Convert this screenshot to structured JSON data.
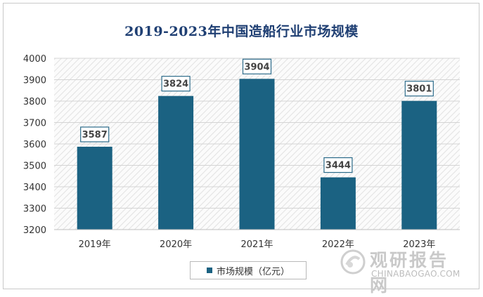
{
  "chart_data": {
    "type": "bar",
    "title": "2019-2023年中国造船行业市场规模",
    "categories": [
      "2019年",
      "2020年",
      "2021年",
      "2022年",
      "2023年"
    ],
    "series": [
      {
        "name": "市场规模（亿元）",
        "values": [
          3587,
          3824,
          3904,
          3444,
          3801
        ]
      }
    ],
    "data_labels": [
      "3587",
      "3824",
      "3904",
      "3444",
      "3801"
    ],
    "ylim": [
      3200,
      4000
    ],
    "yticks": [
      "3200",
      "3300",
      "3400",
      "3500",
      "3600",
      "3700",
      "3800",
      "3900",
      "4000"
    ],
    "xlabel": "",
    "ylabel": "",
    "legend": "bottom-center",
    "bar_color": "#1b6282"
  },
  "watermark": {
    "name": "观研报告网",
    "url": "CHINABAOGAO.COM"
  }
}
